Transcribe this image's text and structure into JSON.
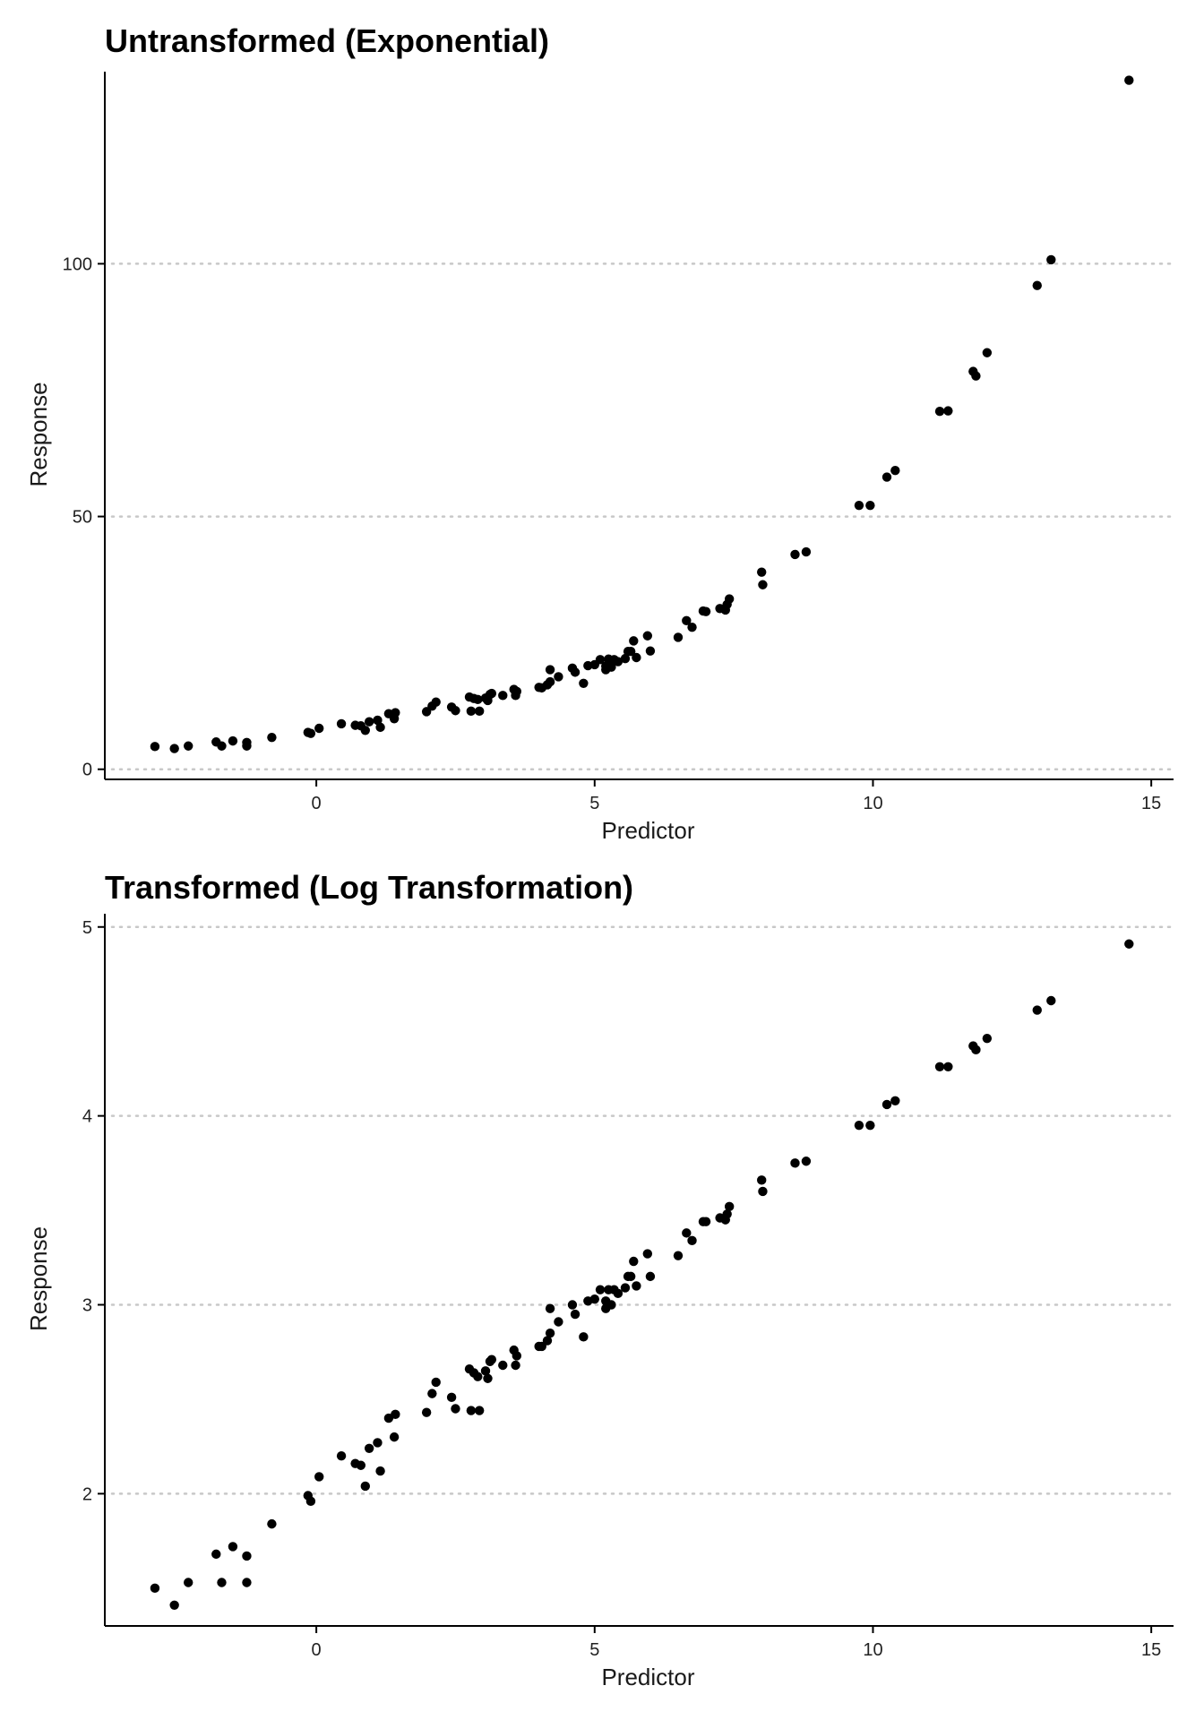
{
  "colors": {
    "point": "#000000",
    "grid": "#c8c8c8",
    "axis": "#000000",
    "background": "#ffffff"
  },
  "chart_data": [
    {
      "type": "scatter",
      "title": "Untransformed (Exponential)",
      "xlabel": "Predictor",
      "ylabel": "Response",
      "xlim": [
        -3.8,
        15.4
      ],
      "ylim": [
        -2,
        138
      ],
      "xticks": [
        0,
        5,
        10,
        15
      ],
      "yticks": [
        0,
        50,
        100
      ],
      "grid": "horizontal dotted",
      "x": [
        -2.9,
        -2.55,
        -2.3,
        -1.8,
        -1.7,
        -1.5,
        -1.25,
        -1.25,
        -0.8,
        -0.15,
        -0.1,
        0.05,
        0.45,
        0.7,
        0.8,
        0.88,
        0.95,
        1.1,
        1.15,
        1.3,
        1.4,
        1.42,
        1.98,
        2.08,
        2.15,
        2.43,
        2.5,
        2.75,
        2.78,
        2.83,
        2.9,
        2.93,
        3.04,
        3.08,
        3.12,
        3.15,
        3.35,
        3.55,
        3.58,
        3.6,
        4.0,
        4.05,
        4.15,
        4.2,
        4.2,
        4.35,
        4.6,
        4.65,
        4.8,
        4.88,
        5.0,
        5.1,
        5.2,
        5.2,
        5.25,
        5.3,
        5.35,
        5.42,
        5.55,
        5.6,
        5.65,
        5.7,
        5.75,
        5.95,
        6.0,
        6.5,
        6.65,
        6.75,
        6.95,
        7.0,
        7.25,
        7.35,
        7.38,
        7.42,
        8.0,
        8.02,
        8.6,
        8.8,
        9.75,
        9.95,
        10.25,
        10.4,
        11.2,
        11.35,
        11.8,
        11.85,
        12.05,
        12.95,
        13.2,
        14.6
      ],
      "y": [
        4.5,
        4.1,
        4.6,
        5.4,
        4.6,
        5.6,
        4.6,
        5.3,
        6.3,
        7.3,
        7.1,
        8.1,
        9.0,
        8.7,
        8.6,
        7.7,
        9.4,
        9.7,
        8.3,
        11.0,
        10.0,
        11.2,
        11.4,
        12.5,
        13.3,
        12.3,
        11.6,
        14.3,
        11.5,
        14.0,
        13.8,
        11.5,
        14.1,
        13.6,
        14.8,
        15.0,
        14.6,
        15.8,
        14.6,
        15.4,
        16.2,
        16.1,
        16.7,
        17.3,
        19.7,
        18.3,
        20.0,
        19.2,
        17.0,
        20.5,
        20.7,
        21.7,
        20.4,
        19.7,
        21.8,
        20.2,
        21.7,
        21.3,
        21.9,
        23.3,
        23.3,
        25.4,
        22.1,
        26.4,
        23.4,
        26.1,
        29.4,
        28.1,
        31.3,
        31.2,
        31.8,
        31.5,
        32.6,
        33.7,
        39.0,
        36.5,
        42.5,
        43.0,
        52.2,
        52.2,
        57.8,
        59.1,
        70.8,
        70.9,
        78.7,
        77.8,
        82.4,
        95.7,
        100.8,
        136.3
      ]
    },
    {
      "type": "scatter",
      "title": "Transformed (Log Transformation)",
      "xlabel": "Predictor",
      "ylabel": "Response",
      "xlim": [
        -3.8,
        15.4
      ],
      "ylim": [
        1.3,
        5.07
      ],
      "xticks": [
        0,
        5,
        10,
        15
      ],
      "yticks": [
        2,
        3,
        4,
        5
      ],
      "grid": "horizontal dotted",
      "x": [
        -2.9,
        -2.55,
        -2.3,
        -1.8,
        -1.7,
        -1.5,
        -1.25,
        -1.25,
        -0.8,
        -0.15,
        -0.1,
        0.05,
        0.45,
        0.7,
        0.8,
        0.88,
        0.95,
        1.1,
        1.15,
        1.3,
        1.4,
        1.42,
        1.98,
        2.08,
        2.15,
        2.43,
        2.5,
        2.75,
        2.78,
        2.83,
        2.9,
        2.93,
        3.04,
        3.08,
        3.12,
        3.15,
        3.35,
        3.55,
        3.58,
        3.6,
        4.0,
        4.05,
        4.15,
        4.2,
        4.2,
        4.35,
        4.6,
        4.65,
        4.8,
        4.88,
        5.0,
        5.1,
        5.2,
        5.2,
        5.25,
        5.3,
        5.35,
        5.42,
        5.55,
        5.6,
        5.65,
        5.7,
        5.75,
        5.95,
        6.0,
        6.5,
        6.65,
        6.75,
        6.95,
        7.0,
        7.25,
        7.35,
        7.38,
        7.42,
        8.0,
        8.02,
        8.6,
        8.8,
        9.75,
        9.95,
        10.25,
        10.4,
        11.2,
        11.35,
        11.8,
        11.85,
        12.05,
        12.95,
        13.2,
        14.6
      ],
      "y": [
        1.5,
        1.41,
        1.53,
        1.68,
        1.53,
        1.72,
        1.53,
        1.67,
        1.84,
        1.99,
        1.96,
        2.09,
        2.2,
        2.16,
        2.15,
        2.04,
        2.24,
        2.27,
        2.12,
        2.4,
        2.3,
        2.42,
        2.43,
        2.53,
        2.59,
        2.51,
        2.45,
        2.66,
        2.44,
        2.64,
        2.62,
        2.44,
        2.65,
        2.61,
        2.7,
        2.71,
        2.68,
        2.76,
        2.68,
        2.73,
        2.78,
        2.78,
        2.81,
        2.85,
        2.98,
        2.91,
        3.0,
        2.95,
        2.83,
        3.02,
        3.03,
        3.08,
        3.02,
        2.98,
        3.08,
        3.0,
        3.08,
        3.06,
        3.09,
        3.15,
        3.15,
        3.23,
        3.1,
        3.27,
        3.15,
        3.26,
        3.38,
        3.34,
        3.44,
        3.44,
        3.46,
        3.45,
        3.48,
        3.52,
        3.66,
        3.6,
        3.75,
        3.76,
        3.95,
        3.95,
        4.06,
        4.08,
        4.26,
        4.26,
        4.37,
        4.35,
        4.41,
        4.56,
        4.61,
        4.91
      ]
    }
  ]
}
